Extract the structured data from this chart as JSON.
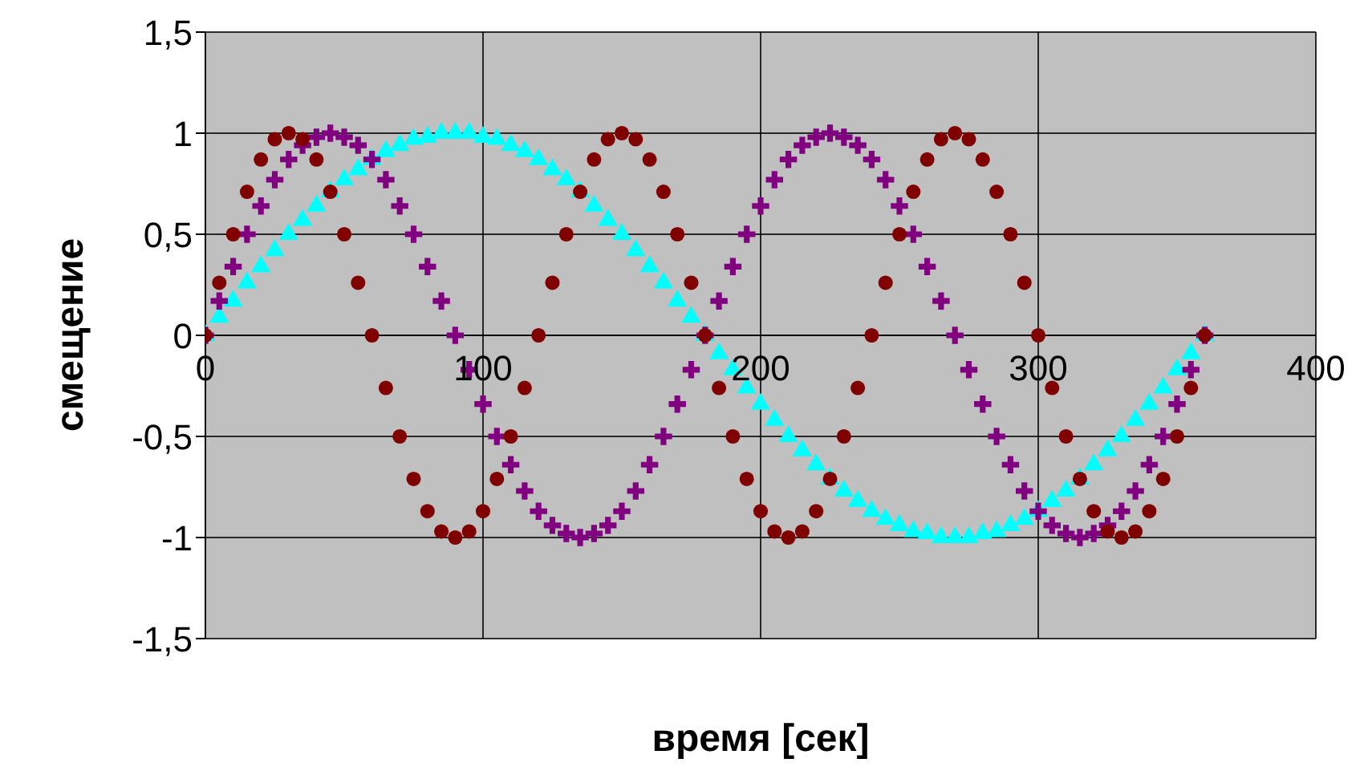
{
  "chart_data": {
    "type": "scatter",
    "xlabel": "время [сек]",
    "ylabel": "смещение",
    "xlim": [
      0,
      400
    ],
    "xticks": [
      0,
      100,
      200,
      300,
      400
    ],
    "ylim": [
      -1.5,
      1.5
    ],
    "yticks": [
      {
        "value": -1.5,
        "label": "-1,5"
      },
      -1,
      {
        "value": -0.5,
        "label": "-0,5"
      },
      0,
      {
        "value": 0.5,
        "label": "0,5"
      },
      1,
      {
        "value": 1.5,
        "label": "1,5"
      }
    ],
    "grid": true,
    "legend": false,
    "x": [
      0,
      5,
      10,
      15,
      20,
      25,
      30,
      35,
      40,
      45,
      50,
      55,
      60,
      65,
      70,
      75,
      80,
      85,
      90,
      95,
      100,
      105,
      110,
      115,
      120,
      125,
      130,
      135,
      140,
      145,
      150,
      155,
      160,
      165,
      170,
      175,
      180,
      185,
      190,
      195,
      200,
      205,
      210,
      215,
      220,
      225,
      230,
      235,
      240,
      245,
      250,
      255,
      260,
      265,
      270,
      275,
      280,
      285,
      290,
      295,
      300,
      305,
      310,
      315,
      320,
      325,
      330,
      335,
      340,
      345,
      350,
      355,
      360
    ],
    "series": [
      {
        "color": "#00ffff",
        "marker": "triangle",
        "values": [
          0,
          0.09,
          0.17,
          0.26,
          0.34,
          0.42,
          0.5,
          0.57,
          0.64,
          0.71,
          0.77,
          0.82,
          0.87,
          0.91,
          0.94,
          0.97,
          0.98,
          1,
          1,
          1,
          0.98,
          0.97,
          0.94,
          0.91,
          0.87,
          0.82,
          0.77,
          0.71,
          0.64,
          0.57,
          0.5,
          0.42,
          0.34,
          0.26,
          0.17,
          0.09,
          0,
          -0.09,
          -0.17,
          -0.26,
          -0.34,
          -0.42,
          -0.5,
          -0.57,
          -0.64,
          -0.71,
          -0.77,
          -0.82,
          -0.87,
          -0.91,
          -0.94,
          -0.97,
          -0.98,
          -1,
          -1,
          -1,
          -0.98,
          -0.97,
          -0.94,
          -0.91,
          -0.87,
          -0.82,
          -0.77,
          -0.71,
          -0.64,
          -0.57,
          -0.5,
          -0.42,
          -0.34,
          -0.26,
          -0.17,
          -0.09,
          0
        ]
      },
      {
        "color": "#800080",
        "marker": "cross",
        "values": [
          0,
          0.17,
          0.34,
          0.5,
          0.64,
          0.77,
          0.87,
          0.94,
          0.98,
          1,
          0.98,
          0.94,
          0.87,
          0.77,
          0.64,
          0.5,
          0.34,
          0.17,
          0,
          -0.17,
          -0.34,
          -0.5,
          -0.64,
          -0.77,
          -0.87,
          -0.94,
          -0.98,
          -1,
          -0.98,
          -0.94,
          -0.87,
          -0.77,
          -0.64,
          -0.5,
          -0.34,
          -0.17,
          0,
          0.17,
          0.34,
          0.5,
          0.64,
          0.77,
          0.87,
          0.94,
          0.98,
          1,
          0.98,
          0.94,
          0.87,
          0.77,
          0.64,
          0.5,
          0.34,
          0.17,
          0,
          -0.17,
          -0.34,
          -0.5,
          -0.64,
          -0.77,
          -0.87,
          -0.94,
          -0.98,
          -1,
          -0.98,
          -0.94,
          -0.87,
          -0.77,
          -0.64,
          -0.5,
          -0.34,
          -0.17,
          0
        ]
      },
      {
        "color": "#800000",
        "marker": "circle",
        "values": [
          0,
          0.26,
          0.5,
          0.71,
          0.87,
          0.97,
          1,
          0.97,
          0.87,
          0.71,
          0.5,
          0.26,
          0,
          -0.26,
          -0.5,
          -0.71,
          -0.87,
          -0.97,
          -1,
          -0.97,
          -0.87,
          -0.71,
          -0.5,
          -0.26,
          0,
          0.26,
          0.5,
          0.71,
          0.87,
          0.97,
          1,
          0.97,
          0.87,
          0.71,
          0.5,
          0.26,
          0,
          -0.26,
          -0.5,
          -0.71,
          -0.87,
          -0.97,
          -1,
          -0.97,
          -0.87,
          -0.71,
          -0.5,
          -0.26,
          0,
          0.26,
          0.5,
          0.71,
          0.87,
          0.97,
          1,
          0.97,
          0.87,
          0.71,
          0.5,
          0.26,
          0,
          -0.26,
          -0.5,
          -0.71,
          -0.87,
          -0.97,
          -1,
          -0.97,
          -0.87,
          -0.71,
          -0.5,
          -0.26,
          0
        ]
      }
    ]
  }
}
